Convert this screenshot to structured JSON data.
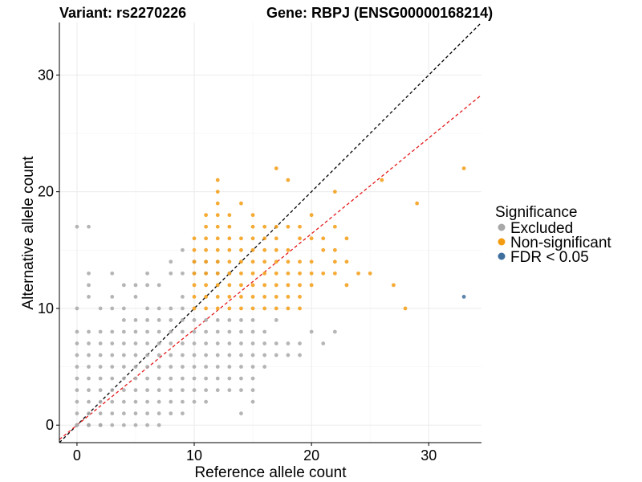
{
  "chart_data": {
    "type": "scatter",
    "title_left": "Variant: rs2270226",
    "title_right": "Gene: RBPJ (ENSG00000168214)",
    "xlabel": "Reference allele count",
    "ylabel": "Alternative allele count",
    "xlim": [
      -1.5,
      34.5
    ],
    "ylim": [
      -1.5,
      34.5
    ],
    "xticks": [
      0,
      10,
      20,
      30
    ],
    "yticks": [
      0,
      10,
      20,
      30
    ],
    "grid": true,
    "reference_lines": [
      {
        "name": "y = x",
        "slope": 1.0,
        "intercept": 0,
        "color": "#000000",
        "dash": true
      },
      {
        "name": "fit",
        "slope": 0.82,
        "intercept": 0,
        "color": "#e41a1c",
        "dash": true
      }
    ],
    "legend": {
      "title": "Significance",
      "placement": "right",
      "entries": [
        {
          "label": "Excluded",
          "color": "#a8a8a8"
        },
        {
          "label": "Non-significant",
          "color": "#f39c12"
        },
        {
          "label": "FDR < 0.05",
          "color": "#3f6f9f"
        }
      ]
    },
    "series": [
      {
        "name": "Excluded",
        "color": "#a8a8a8",
        "x": [
          0,
          0,
          0,
          0,
          0,
          0,
          0,
          0,
          0,
          0,
          0,
          0,
          0,
          1,
          1,
          1,
          1,
          1,
          1,
          1,
          1,
          1,
          1,
          1,
          1,
          1,
          1,
          2,
          2,
          2,
          2,
          2,
          2,
          2,
          2,
          2,
          2,
          2,
          3,
          3,
          3,
          3,
          3,
          3,
          3,
          3,
          3,
          3,
          3,
          3,
          4,
          4,
          4,
          4,
          4,
          4,
          4,
          4,
          4,
          4,
          4,
          4,
          5,
          5,
          5,
          5,
          5,
          5,
          5,
          5,
          5,
          5,
          5,
          5,
          6,
          6,
          6,
          6,
          6,
          6,
          6,
          6,
          6,
          6,
          6,
          6,
          6,
          7,
          7,
          7,
          7,
          7,
          7,
          7,
          7,
          7,
          7,
          7,
          7,
          8,
          8,
          8,
          8,
          8,
          8,
          8,
          8,
          8,
          8,
          8,
          8,
          9,
          9,
          9,
          9,
          9,
          9,
          9,
          9,
          9,
          9,
          9,
          9,
          9,
          10,
          10,
          10,
          10,
          10,
          10,
          10,
          10,
          10,
          10,
          11,
          11,
          11,
          11,
          11,
          11,
          11,
          11,
          11,
          11,
          12,
          12,
          12,
          12,
          12,
          12,
          12,
          12,
          12,
          13,
          13,
          13,
          13,
          13,
          13,
          13,
          13,
          14,
          14,
          14,
          14,
          14,
          14,
          14,
          14,
          15,
          15,
          15,
          15,
          15,
          15,
          15,
          15,
          16,
          16,
          16,
          16,
          17,
          17,
          17,
          18,
          18,
          19,
          19,
          20,
          21,
          22
        ],
        "y": [
          0,
          1,
          2,
          3,
          4,
          5,
          6,
          7,
          8,
          10,
          17,
          0,
          0,
          0,
          1,
          2,
          3,
          4,
          5,
          6,
          7,
          8,
          11,
          12,
          13,
          17,
          0,
          0,
          1,
          2,
          3,
          4,
          5,
          6,
          7,
          8,
          10,
          0,
          0,
          1,
          2,
          3,
          4,
          5,
          6,
          7,
          8,
          10,
          11,
          13,
          0,
          1,
          2,
          3,
          4,
          5,
          6,
          7,
          8,
          9,
          10,
          12,
          0,
          1,
          2,
          3,
          4,
          5,
          6,
          7,
          8,
          9,
          11,
          12,
          0,
          1,
          2,
          3,
          4,
          5,
          6,
          7,
          8,
          9,
          10,
          12,
          13,
          0,
          1,
          2,
          3,
          4,
          5,
          6,
          7,
          8,
          9,
          10,
          12,
          1,
          2,
          3,
          4,
          5,
          6,
          7,
          8,
          9,
          10,
          13,
          14,
          1,
          2,
          3,
          4,
          5,
          6,
          7,
          8,
          9,
          10,
          11,
          13,
          15,
          2,
          3,
          4,
          5,
          6,
          7,
          8,
          9,
          13,
          14,
          2,
          3,
          4,
          5,
          6,
          7,
          8,
          9,
          13,
          14,
          3,
          4,
          5,
          6,
          7,
          8,
          9,
          13,
          14,
          3,
          4,
          5,
          6,
          7,
          8,
          9,
          13,
          1,
          3,
          4,
          5,
          6,
          7,
          8,
          9,
          2,
          3,
          4,
          5,
          6,
          7,
          8,
          9,
          5,
          6,
          7,
          8,
          6,
          7,
          9,
          6,
          7,
          6,
          7,
          8,
          7,
          8
        ]
      },
      {
        "name": "Non-significant",
        "color": "#f39c12",
        "x": [
          10,
          10,
          10,
          10,
          10,
          10,
          10,
          11,
          11,
          11,
          11,
          11,
          11,
          11,
          11,
          11,
          12,
          12,
          12,
          12,
          12,
          12,
          12,
          12,
          12,
          12,
          12,
          12,
          13,
          13,
          13,
          13,
          13,
          13,
          13,
          13,
          13,
          14,
          14,
          14,
          14,
          14,
          14,
          14,
          14,
          15,
          15,
          15,
          15,
          15,
          15,
          15,
          15,
          15,
          16,
          16,
          16,
          16,
          16,
          16,
          16,
          16,
          17,
          17,
          17,
          17,
          17,
          17,
          17,
          17,
          17,
          18,
          18,
          18,
          18,
          18,
          18,
          18,
          18,
          19,
          19,
          19,
          19,
          19,
          19,
          19,
          20,
          20,
          20,
          20,
          20,
          21,
          21,
          21,
          22,
          22,
          22,
          22,
          22,
          23,
          23,
          23,
          24,
          25,
          26,
          27,
          28,
          29,
          33
        ],
        "y": [
          10,
          11,
          12,
          13,
          14,
          15,
          16,
          10,
          11,
          12,
          13,
          14,
          15,
          16,
          17,
          18,
          10,
          11,
          12,
          13,
          14,
          15,
          16,
          17,
          18,
          19,
          20,
          21,
          10,
          11,
          12,
          13,
          14,
          15,
          16,
          17,
          18,
          10,
          11,
          12,
          13,
          14,
          15,
          16,
          19,
          10,
          11,
          12,
          13,
          14,
          15,
          16,
          17,
          18,
          10,
          11,
          12,
          13,
          14,
          15,
          16,
          17,
          10,
          11,
          12,
          13,
          14,
          15,
          16,
          17,
          22,
          10,
          11,
          12,
          13,
          14,
          15,
          17,
          21,
          10,
          11,
          12,
          13,
          14,
          16,
          17,
          12,
          13,
          14,
          16,
          18,
          13,
          15,
          16,
          13,
          14,
          15,
          17,
          20,
          12,
          14,
          16,
          13,
          13,
          21,
          12,
          10,
          19,
          22
        ]
      },
      {
        "name": "FDR < 0.05",
        "color": "#3f6f9f",
        "x": [
          33
        ],
        "y": [
          11
        ]
      }
    ]
  }
}
